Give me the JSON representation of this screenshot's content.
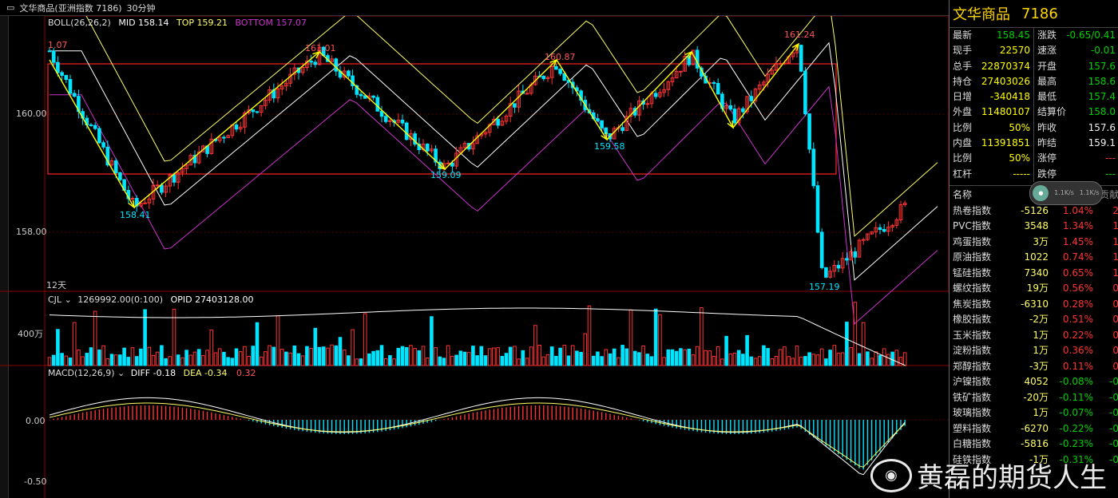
{
  "titlebar": {
    "icon": "window-icon",
    "title": "文华商品(亚洲指数 7186)",
    "period": "30分钟"
  },
  "boll": {
    "label": "BOLL(26,26,2)",
    "mid": "MID 158.14",
    "top": "TOP 159.21",
    "bottom": "BOTTOM 157.07"
  },
  "price_axis": {
    "p160": "160.00",
    "p158": "158.00"
  },
  "days_label": "12天",
  "cjl": {
    "label": "CJL",
    "value": "1269992.00(0:100)",
    "opid": "OPID 27403128.00",
    "axis": "400万"
  },
  "macd": {
    "label": "MACD(12,26,9)",
    "diff": "DIFF -0.18",
    "dea": "DEA -0.34",
    "val": "0.32",
    "axis0": "0.00",
    "axis1": "-0.50"
  },
  "annotations": [
    {
      "text": "1.07"
    },
    {
      "text": "158.41"
    },
    {
      "text": "161.01"
    },
    {
      "text": "159.09"
    },
    {
      "text": "160.87"
    },
    {
      "text": "159.58"
    },
    {
      "text": "161.24"
    },
    {
      "text": "157.19"
    }
  ],
  "colors": {
    "up": "#ff3333",
    "down": "#00e5ff",
    "arrow": "#ffff00",
    "boll_mid": "#ffffff",
    "boll_top": "#ffff66",
    "boll_bot": "#cc33cc"
  },
  "right": {
    "name": "文华商品",
    "code": "7186",
    "quotes": [
      {
        "l": "最新",
        "lv": "158.45",
        "lc": "green",
        "r": "涨跌",
        "rv": "-0.65/0.41",
        "rc": "green"
      },
      {
        "l": "现手",
        "lv": "22570",
        "lc": "yellow",
        "r": "速涨",
        "rv": "-0.01",
        "rc": "green"
      },
      {
        "l": "总手",
        "lv": "22870374",
        "lc": "yellow",
        "r": "开盘",
        "rv": "157.6",
        "rc": "green"
      },
      {
        "l": "持仓",
        "lv": "27403026",
        "lc": "yellow",
        "r": "最高",
        "rv": "158.6",
        "rc": "green"
      },
      {
        "l": "日增",
        "lv": "-340418",
        "lc": "yellow",
        "r": "最低",
        "rv": "157.4",
        "rc": "green"
      },
      {
        "l": "外盘",
        "lv": "11480107",
        "lc": "yellow",
        "r": "结算价",
        "rv": "158.0",
        "rc": "green"
      },
      {
        "l": "比例",
        "lv": "50%",
        "lc": "yellow",
        "r": "昨收",
        "rv": "157.6",
        "rc": "white"
      },
      {
        "l": "内盘",
        "lv": "11391851",
        "lc": "yellow",
        "r": "昨结",
        "rv": "159.1",
        "rc": "white"
      },
      {
        "l": "比例",
        "lv": "50%",
        "lc": "yellow",
        "r": "涨停",
        "rv": "---",
        "rc": "red"
      },
      {
        "l": "杠杆",
        "lv": "-----",
        "lc": "yellow",
        "r": "跌停",
        "rv": "---",
        "rc": "green"
      }
    ],
    "list_head": {
      "c1": "名称",
      "c2": "日增",
      "c4": "贡献"
    },
    "badge": {
      "a": "1.1K/s",
      "b": "1.1K/s"
    },
    "items": [
      {
        "name": "热卷指数",
        "d": "-5126",
        "p": "1.04%",
        "pc": "red",
        "g": "2"
      },
      {
        "name": "PVC指数",
        "d": "3548",
        "p": "1.34%",
        "pc": "red",
        "g": "1"
      },
      {
        "name": "鸡蛋指数",
        "d": "3万",
        "p": "1.45%",
        "pc": "red",
        "g": "1"
      },
      {
        "name": "原油指数",
        "d": "1022",
        "p": "0.74%",
        "pc": "red",
        "g": "1"
      },
      {
        "name": "锰硅指数",
        "d": "7340",
        "p": "0.65%",
        "pc": "red",
        "g": "1"
      },
      {
        "name": "螺纹指数",
        "d": "19万",
        "p": "0.56%",
        "pc": "red",
        "g": "0"
      },
      {
        "name": "焦炭指数",
        "d": "-6310",
        "p": "0.28%",
        "pc": "red",
        "g": "0"
      },
      {
        "name": "橡胶指数",
        "d": "-2万",
        "p": "0.51%",
        "pc": "red",
        "g": "0"
      },
      {
        "name": "玉米指数",
        "d": "1万",
        "p": "0.22%",
        "pc": "red",
        "g": "0"
      },
      {
        "name": "淀粉指数",
        "d": "1万",
        "p": "0.36%",
        "pc": "red",
        "g": "0"
      },
      {
        "name": "郑醇指数",
        "d": "-3万",
        "p": "0.11%",
        "pc": "red",
        "g": "0"
      },
      {
        "name": "沪镍指数",
        "d": "4052",
        "p": "-0.08%",
        "pc": "green",
        "g": "-0"
      },
      {
        "name": "铁矿指数",
        "d": "-20万",
        "p": "-0.11%",
        "pc": "green",
        "g": "-0"
      },
      {
        "name": "玻璃指数",
        "d": "1万",
        "p": "-0.07%",
        "pc": "green",
        "g": "-0"
      },
      {
        "name": "塑料指数",
        "d": "-6270",
        "p": "-0.22%",
        "pc": "green",
        "g": "-0"
      },
      {
        "name": "白糖指数",
        "d": "-5816",
        "p": "-0.23%",
        "pc": "green",
        "g": "-0"
      },
      {
        "name": "硅铁指数",
        "d": "-1万",
        "p": "-0.31%",
        "pc": "green",
        "g": "-0"
      }
    ]
  },
  "watermark": {
    "logo": "weibo-icon",
    "text": "黄磊的期货人生"
  }
}
